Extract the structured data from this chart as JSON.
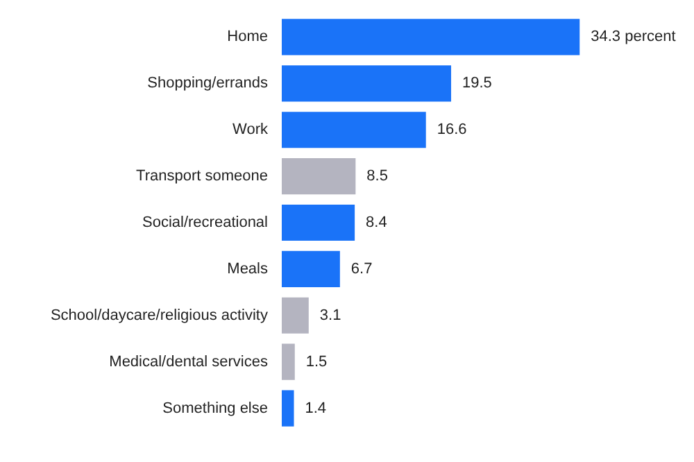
{
  "chart_data": {
    "type": "bar",
    "orientation": "horizontal",
    "categories": [
      "Home",
      "Shopping/errands",
      "Work",
      "Transport someone",
      "Social/recreational",
      "Meals",
      "School/daycare/religious activity",
      "Medical/dental services",
      "Something else"
    ],
    "values": [
      34.3,
      19.5,
      16.6,
      8.5,
      8.4,
      6.7,
      3.1,
      1.5,
      1.4
    ],
    "colors": [
      "#1a73f8",
      "#1a73f8",
      "#1a73f8",
      "#b4b4c0",
      "#1a73f8",
      "#1a73f8",
      "#b4b4c0",
      "#b4b4c0",
      "#1a73f8"
    ],
    "value_labels": [
      "34.3 percent",
      "19.5",
      "16.6",
      "8.5",
      "8.4",
      "6.7",
      "3.1",
      "1.5",
      "1.4"
    ],
    "grid": false
  }
}
